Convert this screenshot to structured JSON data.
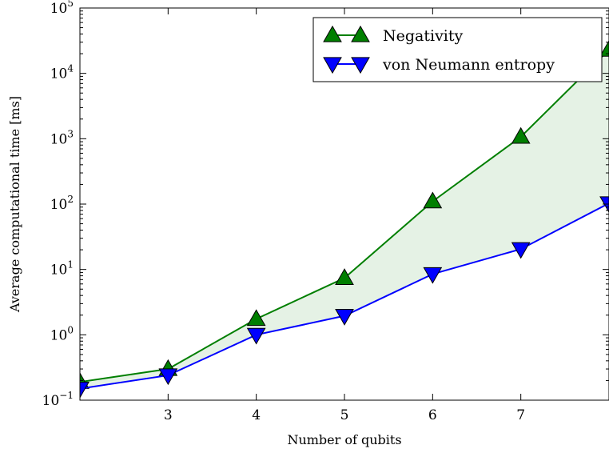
{
  "chart_data": {
    "type": "line",
    "title": "",
    "xlabel": "Number of qubits",
    "ylabel": "Average computational time [ms]",
    "xlim": [
      2,
      8
    ],
    "ylim": [
      0.1,
      100000
    ],
    "yscale": "log",
    "x_ticks": [
      3,
      4,
      5,
      6,
      7
    ],
    "x_tick_labels": [
      "3",
      "4",
      "5",
      "6",
      "7"
    ],
    "y_ticks": [
      {
        "value": 0.1,
        "base": "10",
        "exp": "−1"
      },
      {
        "value": 1,
        "base": "10",
        "exp": "0"
      },
      {
        "value": 10,
        "base": "10",
        "exp": "1"
      },
      {
        "value": 100,
        "base": "10",
        "exp": "2"
      },
      {
        "value": 1000,
        "base": "10",
        "exp": "3"
      },
      {
        "value": 10000,
        "base": "10",
        "exp": "4"
      },
      {
        "value": 100000,
        "base": "10",
        "exp": "5"
      }
    ],
    "x": [
      2,
      3,
      4,
      5,
      6,
      7,
      8
    ],
    "series": [
      {
        "name": "Negativity",
        "marker": "triangle-up",
        "color": "#007f00",
        "values": [
          0.19,
          0.3,
          1.75,
          7.4,
          110,
          1070,
          23000
        ]
      },
      {
        "name": "von Neumann entropy",
        "marker": "triangle-down",
        "color": "#0000ff",
        "values": [
          0.15,
          0.24,
          1.0,
          1.95,
          8.5,
          20.5,
          103
        ]
      }
    ],
    "fill_between": {
      "color": "#007f00",
      "opacity": 0.1
    },
    "legend_position": "top-right",
    "grid": false
  }
}
